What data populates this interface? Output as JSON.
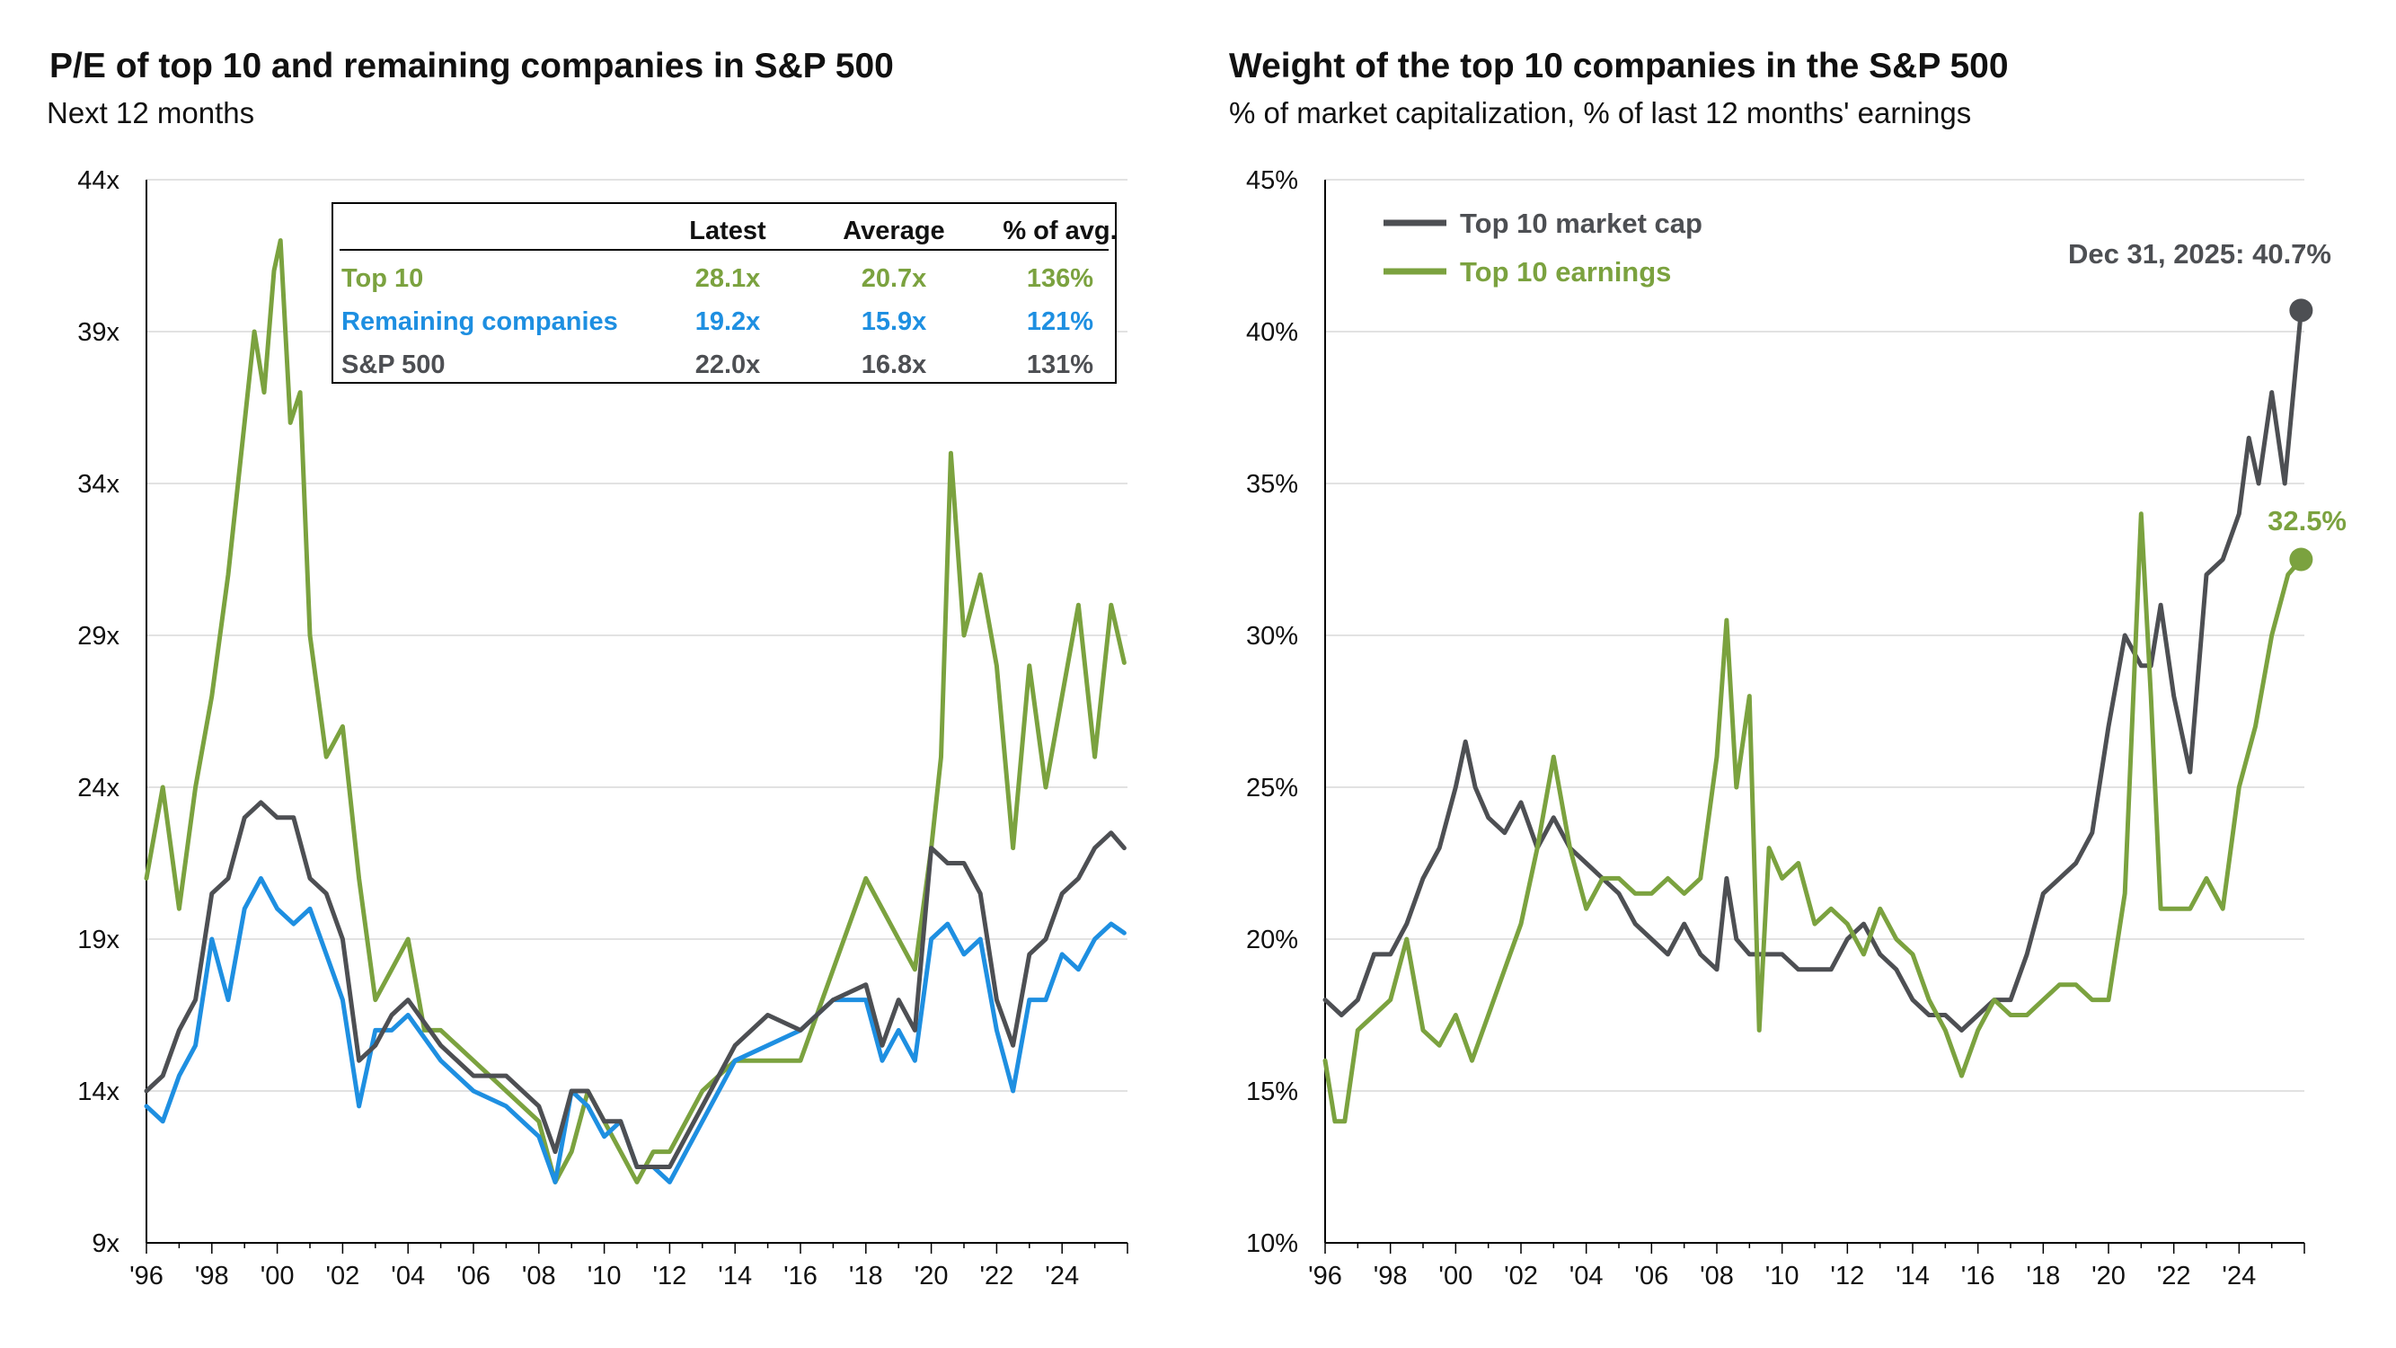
{
  "chart_data": [
    {
      "type": "line",
      "title": "P/E of top 10 and remaining companies in S&P 500",
      "subtitle": "Next 12 months",
      "x_tick_labels": [
        "'96",
        "'98",
        "'00",
        "'02",
        "'04",
        "'06",
        "'08",
        "'10",
        "'12",
        "'14",
        "'16",
        "'18",
        "'20",
        "'22",
        "'24"
      ],
      "y_tick_labels": [
        "44x",
        "39x",
        "34x",
        "29x",
        "24x",
        "19x",
        "14x",
        "9x"
      ],
      "ylim": [
        9,
        44
      ],
      "xlim": [
        1996,
        2026
      ],
      "grid": "horizontal",
      "table": {
        "headers": [
          "",
          "Latest",
          "Average",
          "% of avg."
        ],
        "rows": [
          {
            "label": "Top 10",
            "latest": "28.1x",
            "average": "20.7x",
            "pct": "136%",
            "color": "#7BA23F"
          },
          {
            "label": "Remaining companies",
            "latest": "19.2x",
            "average": "15.9x",
            "pct": "121%",
            "color": "#1E8FE1"
          },
          {
            "label": "S&P 500",
            "latest": "22.0x",
            "average": "16.8x",
            "pct": "131%",
            "color": "#4D4F53"
          }
        ]
      },
      "series": [
        {
          "name": "Top 10",
          "color": "#7BA23F",
          "x": [
            1996,
            1996.5,
            1997,
            1997.5,
            1998,
            1998.5,
            1999,
            1999.3,
            1999.6,
            1999.9,
            2000.1,
            2000.4,
            2000.7,
            2001,
            2001.5,
            2002,
            2002.5,
            2003,
            2003.5,
            2004,
            2004.5,
            2005,
            2006,
            2007,
            2008,
            2008.5,
            2009,
            2009.5,
            2010,
            2010.5,
            2011,
            2011.5,
            2012,
            2012.5,
            2013,
            2014,
            2015,
            2016,
            2017,
            2018,
            2018.5,
            2019,
            2019.5,
            2020,
            2020.3,
            2020.6,
            2021,
            2021.5,
            2022,
            2022.5,
            2023,
            2023.5,
            2024,
            2024.5,
            2025,
            2025.5,
            2025.9
          ],
          "y": [
            21,
            24,
            20,
            24,
            27,
            31,
            36,
            39,
            37,
            41,
            42,
            36,
            37,
            29,
            25,
            26,
            21,
            17,
            18,
            19,
            16,
            16,
            15,
            14,
            13,
            11,
            12,
            14,
            13,
            12,
            11,
            12,
            12,
            13,
            14,
            15,
            15,
            15,
            18,
            21,
            20,
            19,
            18,
            22,
            25,
            35,
            29,
            31,
            28,
            22,
            28,
            24,
            27,
            30,
            25,
            30,
            28.1
          ]
        },
        {
          "name": "Remaining companies",
          "color": "#1E8FE1",
          "x": [
            1996,
            1996.5,
            1997,
            1997.5,
            1998,
            1998.5,
            1999,
            1999.5,
            2000,
            2000.5,
            2001,
            2001.5,
            2002,
            2002.5,
            2003,
            2003.5,
            2004,
            2005,
            2006,
            2007,
            2008,
            2008.5,
            2009,
            2009.5,
            2010,
            2010.5,
            2011,
            2011.5,
            2012,
            2012.5,
            2013,
            2014,
            2015,
            2016,
            2017,
            2018,
            2018.5,
            2019,
            2019.5,
            2020,
            2020.5,
            2021,
            2021.5,
            2022,
            2022.5,
            2023,
            2023.5,
            2024,
            2024.5,
            2025,
            2025.5,
            2025.9
          ],
          "y": [
            13.5,
            13,
            14.5,
            15.5,
            19,
            17,
            20,
            21,
            20,
            19.5,
            20,
            18.5,
            17,
            13.5,
            16,
            16,
            16.5,
            15,
            14,
            13.5,
            12.5,
            11,
            14,
            13.5,
            12.5,
            13,
            11.5,
            11.5,
            11,
            12,
            13,
            15,
            15.5,
            16,
            17,
            17,
            15,
            16,
            15,
            19,
            19.5,
            18.5,
            19,
            16,
            14,
            17,
            17,
            18.5,
            18,
            19,
            19.5,
            19.2
          ]
        },
        {
          "name": "S&P 500",
          "color": "#4D4F53",
          "x": [
            1996,
            1996.5,
            1997,
            1997.5,
            1998,
            1998.5,
            1999,
            1999.5,
            2000,
            2000.5,
            2001,
            2001.5,
            2002,
            2002.5,
            2003,
            2003.5,
            2004,
            2005,
            2006,
            2007,
            2008,
            2008.5,
            2009,
            2009.5,
            2010,
            2010.5,
            2011,
            2011.5,
            2012,
            2012.5,
            2013,
            2014,
            2015,
            2016,
            2017,
            2018,
            2018.5,
            2019,
            2019.5,
            2020,
            2020.5,
            2021,
            2021.5,
            2022,
            2022.5,
            2023,
            2023.5,
            2024,
            2024.5,
            2025,
            2025.5,
            2025.9
          ],
          "y": [
            14,
            14.5,
            16,
            17,
            20.5,
            21,
            23,
            23.5,
            23,
            23,
            21,
            20.5,
            19,
            15,
            15.5,
            16.5,
            17,
            15.5,
            14.5,
            14.5,
            13.5,
            12,
            14,
            14,
            13,
            13,
            11.5,
            11.5,
            11.5,
            12.5,
            13.5,
            15.5,
            16.5,
            16,
            17,
            17.5,
            15.5,
            17,
            16,
            22,
            21.5,
            21.5,
            20.5,
            17,
            15.5,
            18.5,
            19,
            20.5,
            21,
            22,
            22.5,
            22.0
          ]
        }
      ]
    },
    {
      "type": "line",
      "title": "Weight of the top 10 companies in the S&P 500",
      "subtitle": "% of market capitalization, % of last 12 months' earnings",
      "x_tick_labels": [
        "'96",
        "'98",
        "'00",
        "'02",
        "'04",
        "'06",
        "'08",
        "'10",
        "'12",
        "'14",
        "'16",
        "'18",
        "'20",
        "'22",
        "'24"
      ],
      "y_tick_labels": [
        "45%",
        "40%",
        "35%",
        "30%",
        "25%",
        "20%",
        "15%",
        "10%"
      ],
      "ylim": [
        10,
        45
      ],
      "xlim": [
        1996,
        2026
      ],
      "grid": "horizontal",
      "legend_placement": "top-left",
      "annotations": [
        {
          "text": "Dec 31, 2025: 40.7%",
          "series": "Top 10 market cap",
          "color": "#4D4F53"
        },
        {
          "text": "32.5%",
          "series": "Top 10 earnings",
          "color": "#7BA23F"
        }
      ],
      "series": [
        {
          "name": "Top 10 market cap",
          "color": "#4D4F53",
          "x": [
            1996,
            1996.5,
            1997,
            1997.5,
            1998,
            1998.5,
            1999,
            1999.5,
            2000,
            2000.3,
            2000.6,
            2001,
            2001.5,
            2002,
            2002.5,
            2003,
            2003.5,
            2004,
            2004.5,
            2005,
            2005.5,
            2006,
            2006.5,
            2007,
            2007.5,
            2008,
            2008.3,
            2008.6,
            2009,
            2009.5,
            2010,
            2010.5,
            2011,
            2011.5,
            2012,
            2012.5,
            2013,
            2013.5,
            2014,
            2014.5,
            2015,
            2015.5,
            2016,
            2016.5,
            2017,
            2017.5,
            2018,
            2018.5,
            2019,
            2019.5,
            2020,
            2020.5,
            2021,
            2021.3,
            2021.6,
            2022,
            2022.5,
            2023,
            2023.5,
            2024,
            2024.3,
            2024.6,
            2025,
            2025.4,
            2025.9
          ],
          "y": [
            18,
            17.5,
            18,
            19.5,
            19.5,
            20.5,
            22,
            23,
            25,
            26.5,
            25,
            24,
            23.5,
            24.5,
            23,
            24,
            23,
            22.5,
            22,
            21.5,
            20.5,
            20,
            19.5,
            20.5,
            19.5,
            19,
            22,
            20,
            19.5,
            19.5,
            19.5,
            19,
            19,
            19,
            20,
            20.5,
            19.5,
            19,
            18,
            17.5,
            17.5,
            17,
            17.5,
            18,
            18,
            19.5,
            21.5,
            22,
            22.5,
            23.5,
            27,
            30,
            29,
            29,
            31,
            28,
            25.5,
            32,
            32.5,
            34,
            36.5,
            35,
            38,
            35,
            40.7
          ]
        },
        {
          "name": "Top 10 earnings",
          "color": "#7BA23F",
          "x": [
            1996,
            1996.3,
            1996.6,
            1997,
            1997.5,
            1998,
            1998.5,
            1999,
            1999.5,
            2000,
            2000.5,
            2001,
            2001.5,
            2002,
            2002.5,
            2003,
            2003.5,
            2004,
            2004.5,
            2005,
            2005.5,
            2006,
            2006.5,
            2007,
            2007.5,
            2008,
            2008.3,
            2008.6,
            2009,
            2009.3,
            2009.6,
            2010,
            2010.5,
            2011,
            2011.5,
            2012,
            2012.5,
            2013,
            2013.5,
            2014,
            2014.5,
            2015,
            2015.5,
            2016,
            2016.5,
            2017,
            2017.5,
            2018,
            2018.5,
            2019,
            2019.5,
            2020,
            2020.5,
            2021,
            2021.3,
            2021.6,
            2022,
            2022.5,
            2023,
            2023.5,
            2024,
            2024.5,
            2025,
            2025.5,
            2025.9
          ],
          "y": [
            16,
            14,
            14,
            17,
            17.5,
            18,
            20,
            17,
            16.5,
            17.5,
            16,
            17.5,
            19,
            20.5,
            23,
            26,
            23,
            21,
            22,
            22,
            21.5,
            21.5,
            22,
            21.5,
            22,
            26,
            30.5,
            25,
            28,
            17,
            23,
            22,
            22.5,
            20.5,
            21,
            20.5,
            19.5,
            21,
            20,
            19.5,
            18,
            17,
            15.5,
            17,
            18,
            17.5,
            17.5,
            18,
            18.5,
            18.5,
            18,
            18,
            21.5,
            34,
            28,
            21,
            21,
            21,
            22,
            21,
            25,
            27,
            30,
            32,
            32.5
          ]
        }
      ]
    }
  ]
}
